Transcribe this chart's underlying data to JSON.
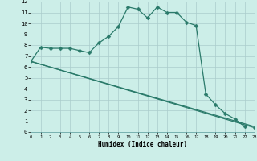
{
  "title": "",
  "xlabel": "Humidex (Indice chaleur)",
  "bg_color": "#cceee8",
  "grid_color": "#aacccc",
  "line_color": "#2a7a6a",
  "xlim": [
    0,
    23
  ],
  "ylim": [
    0,
    12
  ],
  "xticks": [
    0,
    1,
    2,
    3,
    4,
    5,
    6,
    7,
    8,
    9,
    10,
    11,
    12,
    13,
    14,
    15,
    16,
    17,
    18,
    19,
    20,
    21,
    22,
    23
  ],
  "yticks": [
    0,
    1,
    2,
    3,
    4,
    5,
    6,
    7,
    8,
    9,
    10,
    11,
    12
  ],
  "curve1_x": [
    0,
    1,
    2,
    3,
    4,
    5,
    6,
    7,
    8,
    9,
    10,
    11,
    12,
    13,
    14,
    15,
    16,
    17,
    18,
    19,
    20,
    21,
    22
  ],
  "curve1_y": [
    6.5,
    7.8,
    7.7,
    7.7,
    7.7,
    7.5,
    7.3,
    8.2,
    8.8,
    9.7,
    11.5,
    11.3,
    10.5,
    11.5,
    11.0,
    11.0,
    10.1,
    9.8,
    3.5,
    2.5,
    1.7,
    1.2,
    0.5
  ],
  "curve2_x": [
    0,
    23
  ],
  "curve2_y": [
    6.5,
    0.4
  ],
  "curve3_x": [
    0,
    23
  ],
  "curve3_y": [
    6.5,
    0.5
  ]
}
